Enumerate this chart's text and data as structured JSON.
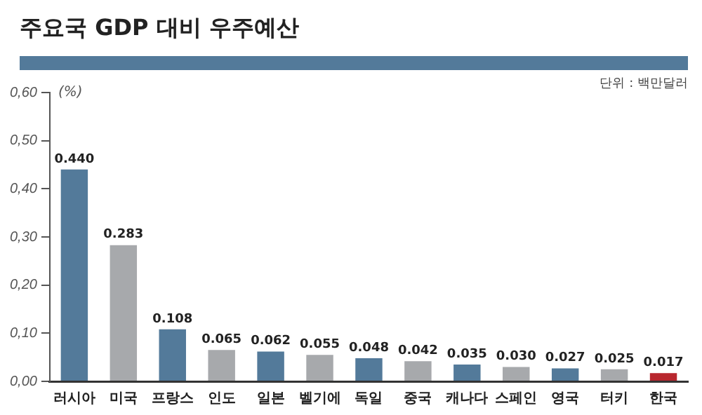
{
  "chart_data": {
    "type": "bar",
    "title": "주요국 GDP 대비 우주예산",
    "ylabel": "(%)",
    "annotations": [
      "단위 : 백만달러"
    ],
    "categories": [
      "러시아",
      "미국",
      "프랑스",
      "인도",
      "일본",
      "벨기에",
      "독일",
      "중국",
      "캐나다",
      "스페인",
      "영국",
      "터키",
      "한국"
    ],
    "values": [
      0.44,
      0.283,
      0.108,
      0.065,
      0.062,
      0.055,
      0.048,
      0.042,
      0.035,
      0.03,
      0.027,
      0.025,
      0.017
    ],
    "value_labels": [
      "0.440",
      "0.283",
      "0.108",
      "0.065",
      "0.062",
      "0.055",
      "0.048",
      "0.042",
      "0.035",
      "0.030",
      "0.027",
      "0.025",
      "0.017"
    ],
    "colors": [
      "#537a9a",
      "#a7a9ac",
      "#537a9a",
      "#a7a9ac",
      "#537a9a",
      "#a7a9ac",
      "#537a9a",
      "#a7a9ac",
      "#537a9a",
      "#a7a9ac",
      "#537a9a",
      "#a7a9ac",
      "#b8272e"
    ],
    "ylim": [
      0,
      0.6
    ],
    "yticks": [
      {
        "value": 0,
        "label": "0,00"
      },
      {
        "value": 0.1,
        "label": "0,10"
      },
      {
        "value": 0.2,
        "label": "0,20"
      },
      {
        "value": 0.3,
        "label": "0,30"
      },
      {
        "value": 0.4,
        "label": "0,40"
      },
      {
        "value": 0.5,
        "label": "0,50"
      },
      {
        "value": 0.6,
        "label": "0,60"
      }
    ],
    "grid": false,
    "legend": false
  }
}
